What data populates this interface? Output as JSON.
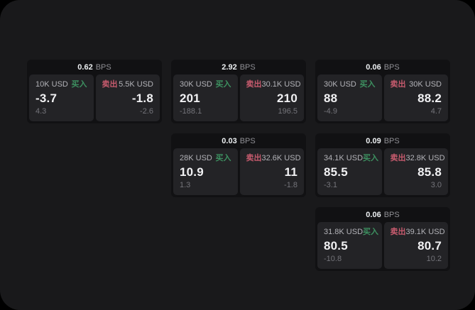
{
  "labels": {
    "bps": "BPS",
    "buy": "买入",
    "sell": "卖出"
  },
  "colors": {
    "page_bg": "#19191b",
    "card_bg": "#111113",
    "panel_bg": "#232326",
    "buy": "#3d9060",
    "sell": "#c75b6e"
  },
  "cards": [
    {
      "row": 1,
      "col": 1,
      "bps": "0.62",
      "buy": {
        "amount": "10K USD",
        "value": "-3.7",
        "sub": "4.3"
      },
      "sell": {
        "amount": "5.5K USD",
        "value": "-1.8",
        "sub": "-2.6"
      }
    },
    {
      "row": 1,
      "col": 2,
      "bps": "2.92",
      "buy": {
        "amount": "30K USD",
        "value": "201",
        "sub": "-188.1"
      },
      "sell": {
        "amount": "30.1K USD",
        "value": "210",
        "sub": "196.5"
      }
    },
    {
      "row": 1,
      "col": 3,
      "bps": "0.06",
      "buy": {
        "amount": "30K USD",
        "value": "88",
        "sub": "-4.9"
      },
      "sell": {
        "amount": "30K USD",
        "value": "88.2",
        "sub": "4.7"
      }
    },
    {
      "row": 2,
      "col": 2,
      "bps": "0.03",
      "buy": {
        "amount": "28K USD",
        "value": "10.9",
        "sub": "1.3"
      },
      "sell": {
        "amount": "32.6K USD",
        "value": "11",
        "sub": "-1.8"
      }
    },
    {
      "row": 2,
      "col": 3,
      "bps": "0.09",
      "buy": {
        "amount": "34.1K USD",
        "value": "85.5",
        "sub": "-3.1"
      },
      "sell": {
        "amount": "32.8K USD",
        "value": "85.8",
        "sub": "3.0"
      }
    },
    {
      "row": 3,
      "col": 3,
      "bps": "0.06",
      "buy": {
        "amount": "31.8K USD",
        "value": "80.5",
        "sub": "-10.8"
      },
      "sell": {
        "amount": "39.1K USD",
        "value": "80.7",
        "sub": "10.2"
      }
    }
  ]
}
